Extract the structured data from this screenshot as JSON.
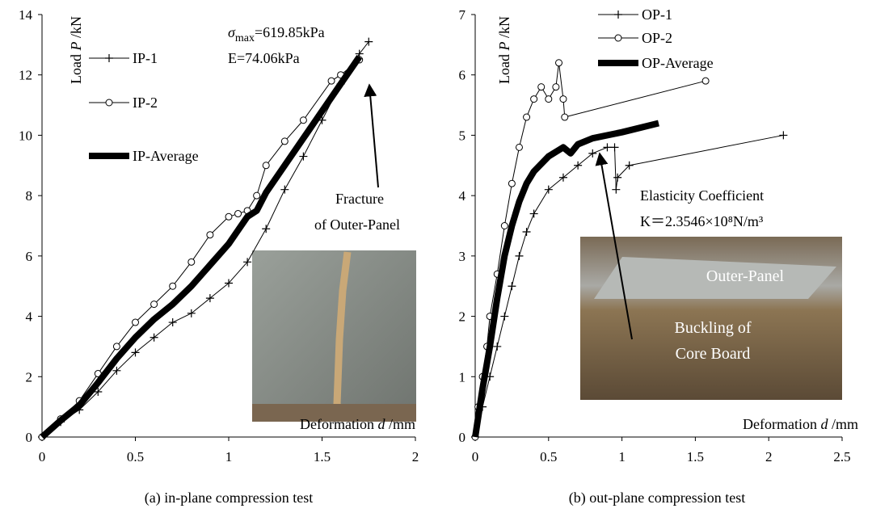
{
  "chart_data": [
    {
      "type": "line",
      "caption": "(a) in-plane compression test",
      "x_label": [
        "Deformation ",
        "d",
        " /mm"
      ],
      "y_label": [
        "Load ",
        "P",
        " /kN"
      ],
      "xlim": [
        0,
        2
      ],
      "xticks": [
        0,
        0.5,
        1,
        1.5,
        2
      ],
      "ylim": [
        0,
        14
      ],
      "yticks": [
        0,
        2,
        4,
        6,
        8,
        10,
        12,
        14
      ],
      "legend": "upper left",
      "series": [
        {
          "name": "IP-1",
          "color": "#000000",
          "marker": "+",
          "line_width": 1,
          "x": [
            0,
            0.1,
            0.2,
            0.3,
            0.4,
            0.5,
            0.6,
            0.7,
            0.8,
            0.9,
            1.0,
            1.1,
            1.2,
            1.3,
            1.4,
            1.5,
            1.6,
            1.7,
            1.75
          ],
          "values": [
            0,
            0.5,
            0.9,
            1.5,
            2.2,
            2.8,
            3.3,
            3.8,
            4.1,
            4.6,
            5.1,
            5.8,
            6.9,
            8.2,
            9.3,
            10.5,
            11.7,
            12.7,
            13.1
          ]
        },
        {
          "name": "IP-2",
          "color": "#000000",
          "marker": "o",
          "line_width": 1,
          "x": [
            0,
            0.1,
            0.2,
            0.3,
            0.4,
            0.5,
            0.6,
            0.7,
            0.8,
            0.9,
            1.0,
            1.05,
            1.1,
            1.15,
            1.2,
            1.3,
            1.4,
            1.55,
            1.6,
            1.7
          ],
          "values": [
            0,
            0.6,
            1.2,
            2.1,
            3.0,
            3.8,
            4.4,
            5.0,
            5.8,
            6.7,
            7.3,
            7.4,
            7.5,
            8.0,
            9.0,
            9.8,
            10.5,
            11.8,
            12.0,
            12.5
          ]
        },
        {
          "name": "IP-Average",
          "color": "#000000",
          "marker": "none",
          "line_width": 8,
          "x": [
            0,
            0.1,
            0.2,
            0.3,
            0.4,
            0.5,
            0.6,
            0.7,
            0.8,
            0.9,
            1.0,
            1.1,
            1.15,
            1.2,
            1.3,
            1.4,
            1.5,
            1.6,
            1.7
          ],
          "values": [
            0,
            0.55,
            1.05,
            1.8,
            2.6,
            3.3,
            3.9,
            4.4,
            5.0,
            5.7,
            6.4,
            7.3,
            7.5,
            8.1,
            9.0,
            9.9,
            10.8,
            11.7,
            12.6
          ]
        }
      ],
      "annotations": {
        "stress": [
          "σ",
          "max",
          "=619.85kPa"
        ],
        "modulus": "E=74.06kPa",
        "fracture": [
          "Fracture",
          "of Outer-Panel"
        ]
      }
    },
    {
      "type": "line",
      "caption": "(b) out-plane compression test",
      "x_label": [
        "Deformation ",
        "d",
        " /mm"
      ],
      "y_label": [
        "Load ",
        "P",
        " /kN"
      ],
      "xlim": [
        0,
        2.5
      ],
      "xticks": [
        0,
        0.5,
        1,
        1.5,
        2,
        2.5
      ],
      "ylim": [
        0,
        7
      ],
      "yticks": [
        0,
        1,
        2,
        3,
        4,
        5,
        6,
        7
      ],
      "legend": "upper left",
      "series": [
        {
          "name": "OP-1",
          "color": "#000000",
          "marker": "+",
          "line_width": 1,
          "x": [
            0,
            0.05,
            0.1,
            0.15,
            0.2,
            0.25,
            0.3,
            0.35,
            0.4,
            0.5,
            0.6,
            0.7,
            0.8,
            0.9,
            0.95,
            0.96,
            0.97,
            1.05,
            2.1
          ],
          "values": [
            0,
            0.5,
            1.0,
            1.5,
            2.0,
            2.5,
            3.0,
            3.4,
            3.7,
            4.1,
            4.3,
            4.5,
            4.7,
            4.8,
            4.8,
            4.1,
            4.3,
            4.5,
            5.0
          ]
        },
        {
          "name": "OP-2",
          "color": "#000000",
          "marker": "o",
          "line_width": 1,
          "x": [
            0,
            0.02,
            0.05,
            0.08,
            0.1,
            0.15,
            0.2,
            0.25,
            0.3,
            0.35,
            0.4,
            0.45,
            0.5,
            0.55,
            0.57,
            0.6,
            0.61,
            1.57
          ],
          "values": [
            0,
            0.5,
            1.0,
            1.5,
            2.0,
            2.7,
            3.5,
            4.2,
            4.8,
            5.3,
            5.6,
            5.8,
            5.6,
            5.8,
            6.2,
            5.6,
            5.3,
            5.9
          ]
        },
        {
          "name": "OP-Average",
          "color": "#000000",
          "marker": "none",
          "line_width": 8,
          "x": [
            0,
            0.05,
            0.1,
            0.15,
            0.2,
            0.25,
            0.3,
            0.35,
            0.4,
            0.5,
            0.6,
            0.65,
            0.7,
            0.8,
            1.0,
            1.25
          ],
          "values": [
            0,
            0.8,
            1.5,
            2.3,
            3.0,
            3.5,
            3.9,
            4.2,
            4.4,
            4.65,
            4.8,
            4.7,
            4.85,
            4.95,
            5.05,
            5.2
          ]
        }
      ],
      "annotations": {
        "coefficient": [
          "Elasticity Coefficient",
          "K＝2.3546×10⁸N/m³"
        ],
        "panel": "Outer-Panel",
        "buckling": [
          "Buckling of",
          "Core Board"
        ]
      }
    }
  ]
}
